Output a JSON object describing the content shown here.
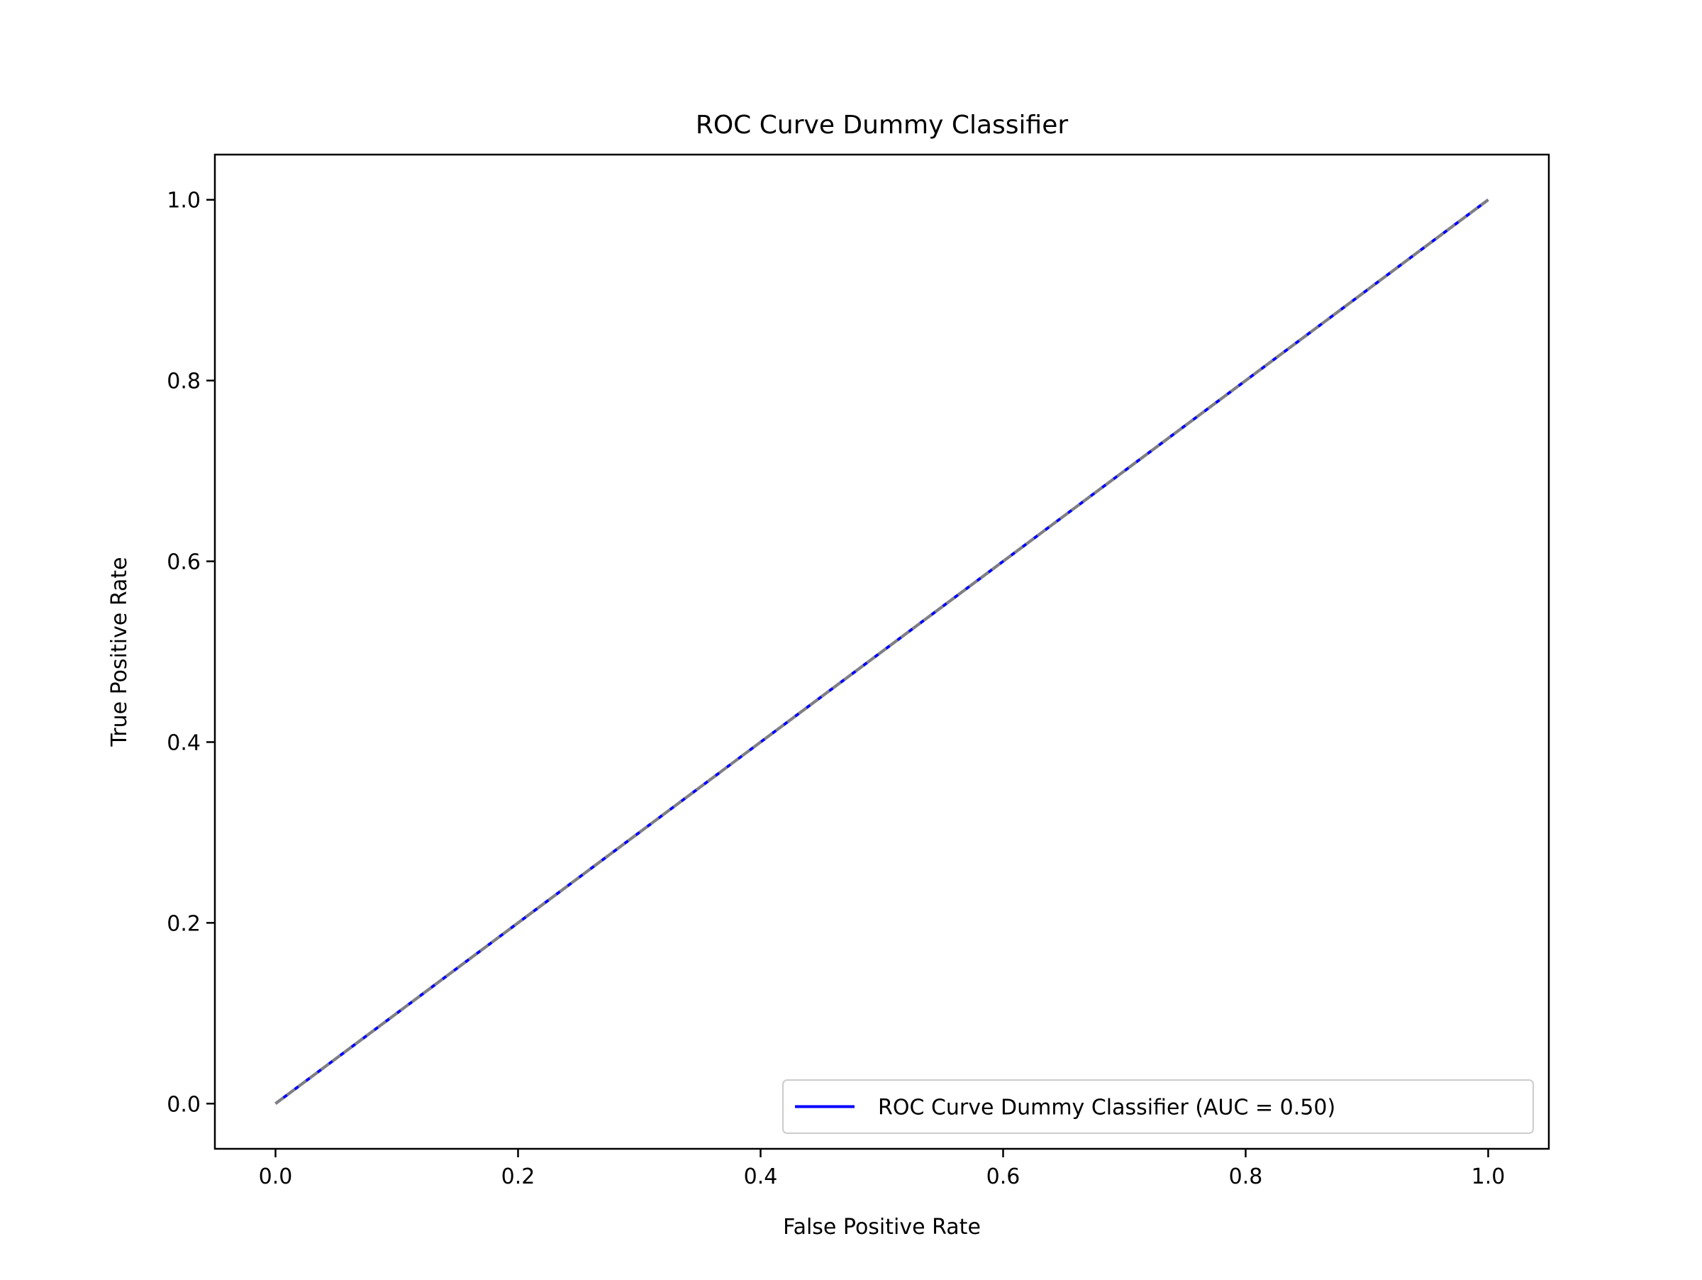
{
  "chart_data": {
    "type": "line",
    "title": "ROC Curve Dummy Classifier",
    "xlabel": "False Positive Rate",
    "ylabel": "True Positive Rate",
    "xlim": [
      -0.05,
      1.05
    ],
    "ylim": [
      -0.05,
      1.05
    ],
    "xticks": [
      "0.0",
      "0.2",
      "0.4",
      "0.6",
      "0.8",
      "1.0"
    ],
    "yticks": [
      "0.0",
      "0.2",
      "0.4",
      "0.6",
      "0.8",
      "1.0"
    ],
    "grid": false,
    "legend_position": "lower-right",
    "series": [
      {
        "name": "ROC Curve Dummy Classifier (AUC = 0.50)",
        "color": "#0000ff",
        "style": "solid",
        "x": [
          0.0,
          1.0
        ],
        "y": [
          0.0,
          1.0
        ]
      },
      {
        "color": "#808080",
        "style": "dashed",
        "x": [
          0.0,
          1.0
        ],
        "y": [
          0.0,
          1.0
        ]
      }
    ]
  }
}
